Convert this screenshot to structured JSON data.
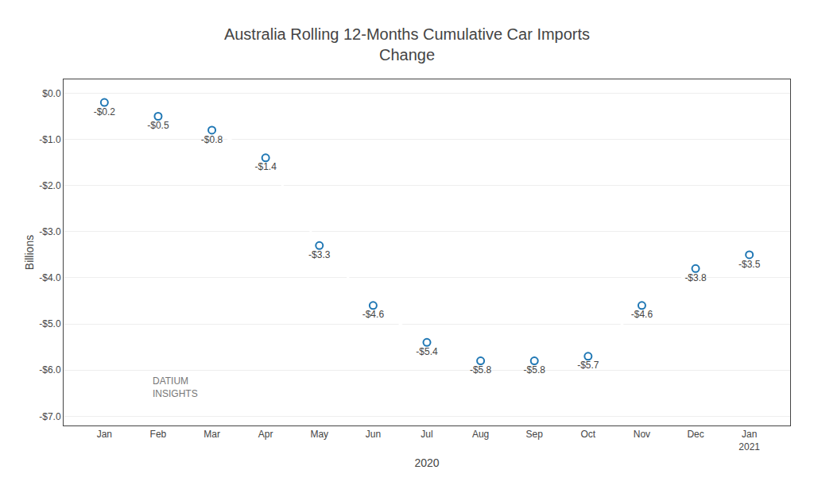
{
  "chart_data": {
    "type": "line",
    "title": "Australia Rolling 12-Months Cumulative Car Imports\nChange",
    "x_label": "2020",
    "y_label": "Billions",
    "categories": [
      "Jan",
      "Feb",
      "Mar",
      "Apr",
      "May",
      "Jun",
      "Jul",
      "Aug",
      "Sep",
      "Oct",
      "Nov",
      "Dec",
      "Jan\n2021"
    ],
    "values": [
      -0.2,
      -0.5,
      -0.8,
      -1.4,
      -3.3,
      -4.6,
      -5.4,
      -5.8,
      -5.8,
      -5.7,
      -4.6,
      -3.8,
      -3.5
    ],
    "value_labels": [
      "-$0.2",
      "-$0.5",
      "-$0.8",
      "-$1.4",
      "-$3.3",
      "-$4.6",
      "-$5.4",
      "-$5.8",
      "-$5.8",
      "-$5.7",
      "-$4.6",
      "-$3.8",
      "-$3.5"
    ],
    "data_labels": true,
    "marker": "circle",
    "ylim": [
      -7.2,
      0.3
    ],
    "yticks": [
      {
        "value": 0.0,
        "label": "$0.0"
      },
      {
        "value": -1.0,
        "label": "-$1.0"
      },
      {
        "value": -2.0,
        "label": "-$2.0"
      },
      {
        "value": -3.0,
        "label": "-$3.0"
      },
      {
        "value": -4.0,
        "label": "-$4.0"
      },
      {
        "value": -5.0,
        "label": "-$5.0"
      },
      {
        "value": -6.0,
        "label": "-$6.0"
      },
      {
        "value": -7.0,
        "label": "-$7.0"
      }
    ],
    "grid": true,
    "annotations": [
      {
        "text": "DATIUM\nINSIGHTS"
      }
    ]
  }
}
